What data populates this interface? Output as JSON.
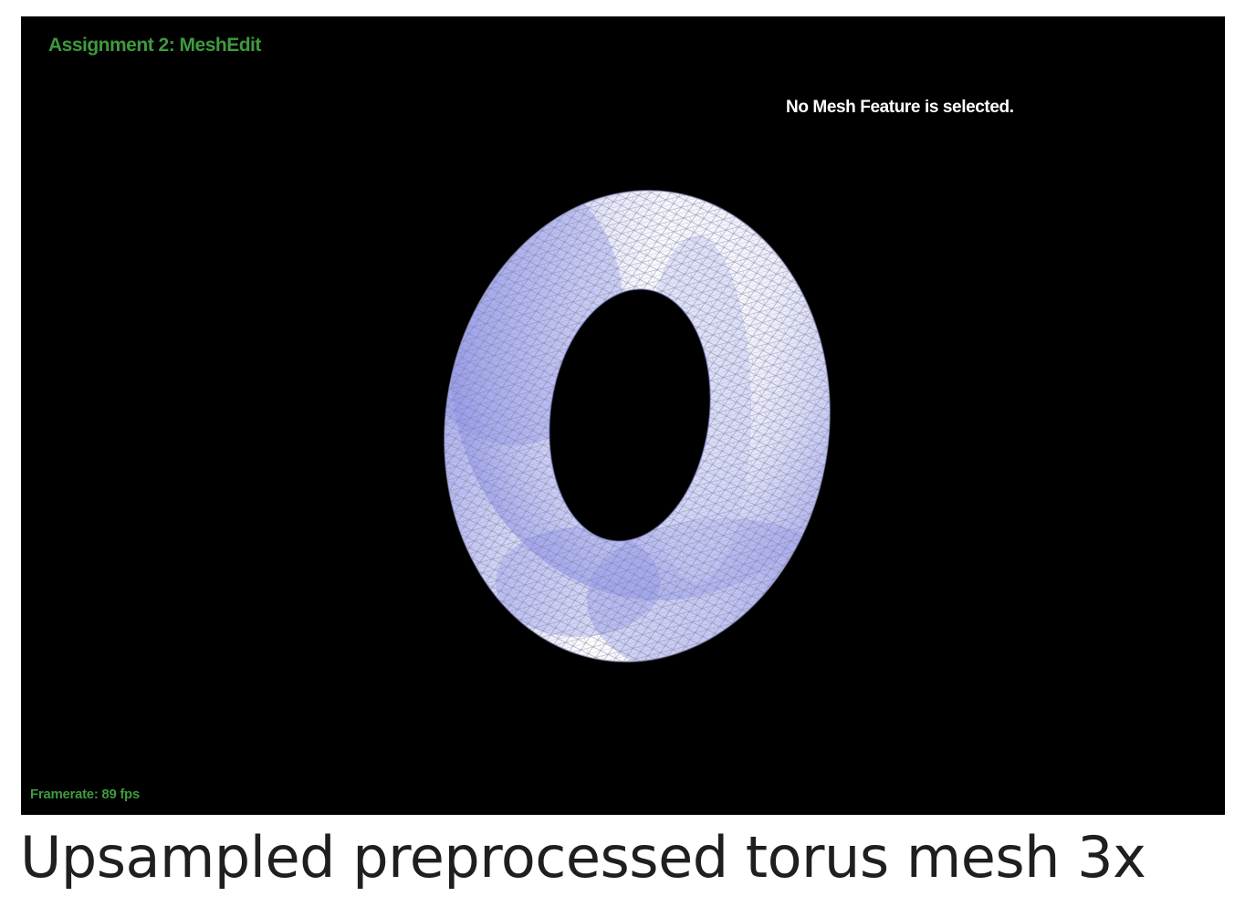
{
  "viewer": {
    "app_title": "Assignment 2: MeshEdit",
    "selection_status": "No Mesh Feature is selected.",
    "framerate_label": "Framerate: 89 fps",
    "hud_color": "#3e9a3e",
    "background_color": "#000000"
  },
  "mesh": {
    "model": "torus",
    "shading_light": "#ffffff",
    "shading_mid": "#b8bcf0",
    "shading_dark": "#7b80e6",
    "wire_color": "#8a8a9a"
  },
  "caption": {
    "text": "Upsampled preprocessed torus mesh 3x"
  }
}
